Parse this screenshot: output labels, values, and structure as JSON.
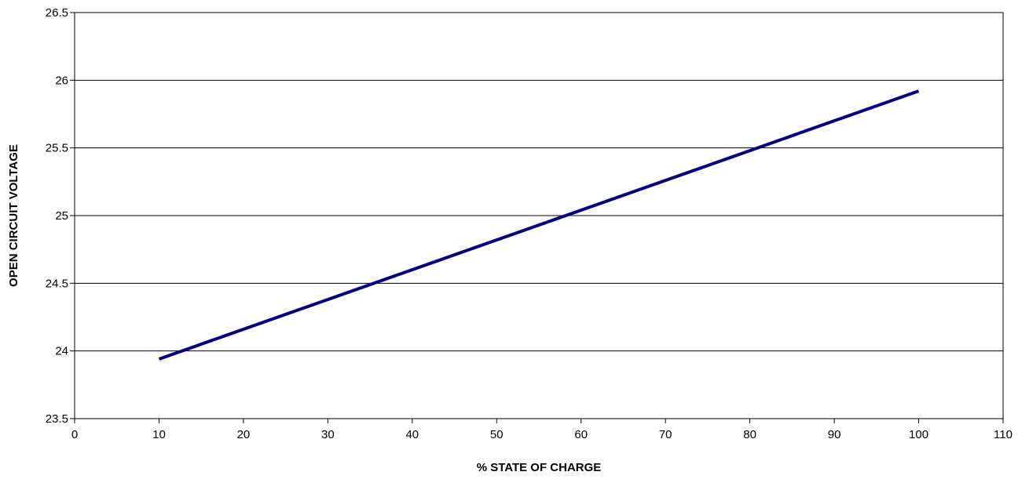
{
  "chart_data": {
    "type": "line",
    "title": "",
    "xlabel": "% STATE OF CHARGE",
    "ylabel": "OPEN CIRCUIT VOLTAGE",
    "xlim": [
      0,
      110
    ],
    "ylim": [
      23.5,
      26.5
    ],
    "xticks": [
      0,
      10,
      20,
      30,
      40,
      50,
      60,
      70,
      80,
      90,
      100,
      110
    ],
    "yticks": [
      23.5,
      24,
      24.5,
      25,
      25.5,
      26,
      26.5
    ],
    "xtick_labels": [
      "0",
      "10",
      "20",
      "30",
      "40",
      "50",
      "60",
      "70",
      "80",
      "90",
      "100",
      "110"
    ],
    "ytick_labels": [
      "23.5",
      "24",
      "24.5",
      "25",
      "25.5",
      "26",
      "26.5"
    ],
    "grid": {
      "horizontal": true,
      "vertical": false
    },
    "legend": "none",
    "series": [
      {
        "color": "#000080",
        "x": [
          10,
          100
        ],
        "y": [
          23.94,
          25.92
        ]
      }
    ]
  }
}
